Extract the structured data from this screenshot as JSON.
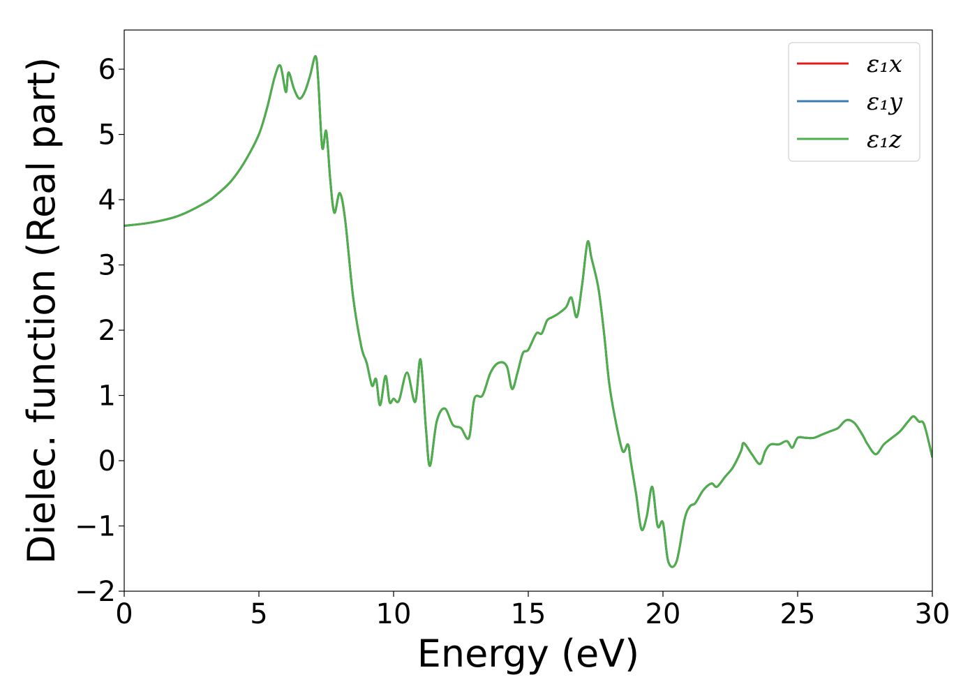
{
  "chart_data": {
    "type": "line",
    "title": "",
    "xlabel": "Energy (eV)",
    "ylabel": "Dielec. function (Real part)",
    "xlim": [
      0,
      30
    ],
    "ylim": [
      -2,
      6.6
    ],
    "xticks": [
      0,
      5,
      10,
      15,
      20,
      25,
      30
    ],
    "yticks": [
      -2,
      -1,
      0,
      1,
      2,
      3,
      4,
      5,
      6
    ],
    "xtick_labels": [
      "0",
      "5",
      "10",
      "15",
      "20",
      "25",
      "30"
    ],
    "ytick_labels": [
      "−2",
      "−1",
      "0",
      "1",
      "2",
      "3",
      "4",
      "5",
      "6"
    ],
    "grid": false,
    "legend_position": "top-right",
    "x": [
      0,
      1,
      2,
      3,
      3.5,
      4,
      4.5,
      5,
      5.3,
      5.6,
      5.8,
      6.0,
      6.1,
      6.3,
      6.5,
      6.7,
      6.9,
      7.1,
      7.2,
      7.35,
      7.5,
      7.65,
      7.8,
      8.0,
      8.2,
      8.5,
      8.8,
      9.0,
      9.2,
      9.35,
      9.5,
      9.7,
      9.85,
      10.0,
      10.2,
      10.5,
      10.8,
      11.0,
      11.2,
      11.35,
      11.6,
      11.9,
      12.2,
      12.5,
      12.8,
      13.0,
      13.3,
      13.6,
      13.9,
      14.2,
      14.4,
      14.6,
      14.8,
      15.0,
      15.3,
      15.5,
      15.7,
      15.9,
      16.1,
      16.4,
      16.6,
      16.8,
      17.0,
      17.2,
      17.35,
      17.6,
      17.8,
      18.0,
      18.2,
      18.5,
      18.7,
      18.8,
      19.0,
      19.2,
      19.4,
      19.6,
      19.8,
      20.0,
      20.2,
      20.5,
      20.8,
      21.0,
      21.2,
      21.5,
      21.8,
      22.0,
      22.3,
      22.6,
      22.9,
      23.0,
      23.3,
      23.6,
      23.8,
      24.0,
      24.3,
      24.6,
      24.8,
      25.0,
      25.3,
      25.6,
      25.9,
      26.2,
      26.5,
      26.8,
      27.1,
      27.4,
      27.6,
      27.9,
      28.2,
      28.5,
      28.8,
      29.1,
      29.3,
      29.5,
      29.7,
      30.0
    ],
    "series": [
      {
        "name": "ε₁x",
        "color": "#e41a1c",
        "y": [
          3.6,
          3.65,
          3.75,
          3.95,
          4.1,
          4.3,
          4.6,
          5.0,
          5.4,
          5.9,
          6.05,
          5.65,
          5.95,
          5.7,
          5.55,
          5.65,
          5.9,
          6.2,
          5.85,
          4.8,
          5.05,
          4.3,
          3.8,
          4.1,
          3.7,
          2.5,
          1.75,
          1.5,
          1.15,
          1.25,
          0.85,
          1.3,
          0.9,
          0.95,
          0.92,
          1.35,
          0.9,
          1.55,
          0.5,
          -0.08,
          0.6,
          0.8,
          0.55,
          0.5,
          0.35,
          0.95,
          1.0,
          1.35,
          1.5,
          1.45,
          1.1,
          1.35,
          1.65,
          1.7,
          1.95,
          1.95,
          2.15,
          2.2,
          2.25,
          2.35,
          2.5,
          2.2,
          2.7,
          3.35,
          3.1,
          2.65,
          2.0,
          1.2,
          0.7,
          0.15,
          0.25,
          0.0,
          -0.5,
          -1.05,
          -0.85,
          -0.4,
          -1.0,
          -0.95,
          -1.55,
          -1.55,
          -0.9,
          -0.7,
          -0.65,
          -0.45,
          -0.35,
          -0.4,
          -0.25,
          -0.1,
          0.15,
          0.27,
          0.1,
          -0.05,
          0.15,
          0.25,
          0.25,
          0.3,
          0.2,
          0.35,
          0.35,
          0.35,
          0.4,
          0.45,
          0.5,
          0.62,
          0.58,
          0.4,
          0.25,
          0.1,
          0.25,
          0.35,
          0.45,
          0.6,
          0.68,
          0.6,
          0.55,
          0.05
        ]
      },
      {
        "name": "ε₁y",
        "color": "#377eb8",
        "y": [
          3.6,
          3.65,
          3.75,
          3.95,
          4.1,
          4.3,
          4.6,
          5.0,
          5.4,
          5.9,
          6.05,
          5.65,
          5.95,
          5.7,
          5.55,
          5.65,
          5.9,
          6.2,
          5.85,
          4.8,
          5.05,
          4.3,
          3.8,
          4.1,
          3.7,
          2.5,
          1.75,
          1.5,
          1.15,
          1.25,
          0.85,
          1.3,
          0.9,
          0.95,
          0.92,
          1.35,
          0.9,
          1.55,
          0.5,
          -0.08,
          0.6,
          0.8,
          0.55,
          0.5,
          0.35,
          0.95,
          1.0,
          1.35,
          1.5,
          1.45,
          1.1,
          1.35,
          1.65,
          1.7,
          1.95,
          1.95,
          2.15,
          2.2,
          2.25,
          2.35,
          2.5,
          2.2,
          2.7,
          3.35,
          3.1,
          2.65,
          2.0,
          1.2,
          0.7,
          0.15,
          0.25,
          0.0,
          -0.5,
          -1.05,
          -0.85,
          -0.4,
          -1.0,
          -0.95,
          -1.55,
          -1.55,
          -0.9,
          -0.7,
          -0.65,
          -0.45,
          -0.35,
          -0.4,
          -0.25,
          -0.1,
          0.15,
          0.27,
          0.1,
          -0.05,
          0.15,
          0.25,
          0.25,
          0.3,
          0.2,
          0.35,
          0.35,
          0.35,
          0.4,
          0.45,
          0.5,
          0.62,
          0.58,
          0.4,
          0.25,
          0.1,
          0.25,
          0.35,
          0.45,
          0.6,
          0.68,
          0.6,
          0.55,
          0.05
        ]
      },
      {
        "name": "ε₁z",
        "color": "#4daf4a",
        "y": [
          3.6,
          3.65,
          3.75,
          3.95,
          4.1,
          4.3,
          4.6,
          5.0,
          5.4,
          5.9,
          6.05,
          5.65,
          5.95,
          5.7,
          5.55,
          5.65,
          5.9,
          6.2,
          5.85,
          4.8,
          5.05,
          4.3,
          3.8,
          4.1,
          3.7,
          2.5,
          1.75,
          1.5,
          1.15,
          1.25,
          0.85,
          1.3,
          0.9,
          0.95,
          0.92,
          1.35,
          0.9,
          1.55,
          0.5,
          -0.08,
          0.6,
          0.8,
          0.55,
          0.5,
          0.35,
          0.95,
          1.0,
          1.35,
          1.5,
          1.45,
          1.1,
          1.35,
          1.65,
          1.7,
          1.95,
          1.95,
          2.15,
          2.2,
          2.25,
          2.35,
          2.5,
          2.2,
          2.7,
          3.35,
          3.1,
          2.65,
          2.0,
          1.2,
          0.7,
          0.15,
          0.25,
          0.0,
          -0.5,
          -1.05,
          -0.85,
          -0.4,
          -1.0,
          -0.95,
          -1.55,
          -1.55,
          -0.9,
          -0.7,
          -0.65,
          -0.45,
          -0.35,
          -0.4,
          -0.25,
          -0.1,
          0.15,
          0.27,
          0.1,
          -0.05,
          0.15,
          0.25,
          0.25,
          0.3,
          0.2,
          0.35,
          0.35,
          0.35,
          0.4,
          0.45,
          0.5,
          0.62,
          0.58,
          0.4,
          0.25,
          0.1,
          0.25,
          0.35,
          0.45,
          0.6,
          0.68,
          0.6,
          0.55,
          0.05
        ]
      }
    ]
  }
}
